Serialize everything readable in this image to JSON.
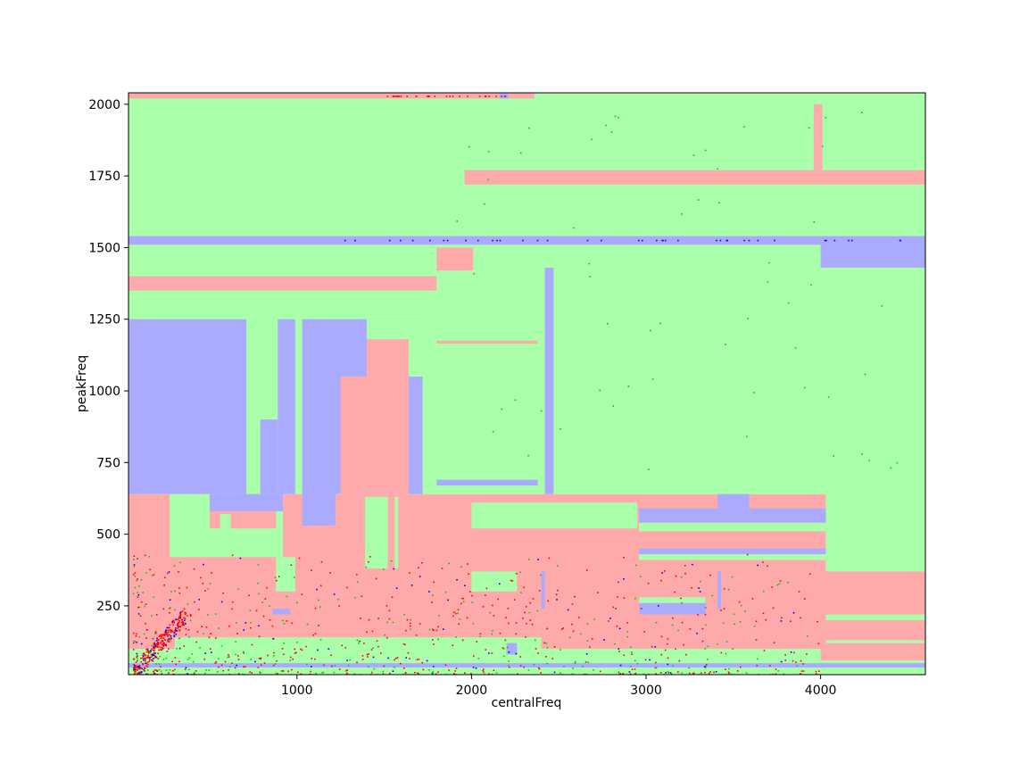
{
  "chart_data": {
    "type": "heatmap",
    "title": "",
    "xlabel": "centralFreq",
    "ylabel": "peakFreq",
    "xlim": [
      35,
      4600
    ],
    "ylim": [
      10,
      2040
    ],
    "xticks": [
      1000,
      2000,
      3000,
      4000
    ],
    "yticks": [
      250,
      500,
      750,
      1000,
      1250,
      1500,
      1750,
      2000
    ],
    "grid": false,
    "legend": "none",
    "colors": {
      "region_green": "#aaffaa",
      "region_red": "#ffaaaa",
      "region_blue": "#aaaaff",
      "point_red": "#ff0000",
      "point_green": "#00cc00",
      "point_blue": "#0000ff"
    },
    "regions": [
      {
        "class": "red",
        "x": [
          35,
          4600
        ],
        "y": [
          10,
          640
        ]
      },
      {
        "class": "green",
        "x": [
          35,
          4600
        ],
        "y": [
          640,
          2040
        ]
      },
      {
        "class": "red",
        "x": [
          35,
          2360
        ],
        "y": [
          2020,
          2040
        ]
      },
      {
        "class": "blue",
        "x": [
          2160,
          2210
        ],
        "y": [
          2020,
          2040
        ]
      },
      {
        "class": "red",
        "x": [
          3960,
          4010
        ],
        "y": [
          1770,
          2000
        ]
      },
      {
        "class": "red",
        "x": [
          1960,
          4600
        ],
        "y": [
          1720,
          1770
        ]
      },
      {
        "class": "blue",
        "x": [
          35,
          4600
        ],
        "y": [
          1510,
          1540
        ]
      },
      {
        "class": "blue",
        "x": [
          4000,
          4600
        ],
        "y": [
          1430,
          1515
        ]
      },
      {
        "class": "red",
        "x": [
          1800,
          2010
        ],
        "y": [
          1420,
          1500
        ]
      },
      {
        "class": "red",
        "x": [
          35,
          1800
        ],
        "y": [
          1350,
          1400
        ]
      },
      {
        "class": "blue",
        "x": [
          2420,
          2470
        ],
        "y": [
          640,
          1430
        ]
      },
      {
        "class": "red",
        "x": [
          1800,
          2380
        ],
        "y": [
          1165,
          1175
        ]
      },
      {
        "class": "blue",
        "x": [
          1800,
          2380
        ],
        "y": [
          670,
          690
        ]
      },
      {
        "class": "blue",
        "x": [
          35,
          710
        ],
        "y": [
          640,
          1250
        ]
      },
      {
        "class": "blue",
        "x": [
          890,
          990
        ],
        "y": [
          640,
          1250
        ]
      },
      {
        "class": "blue",
        "x": [
          790,
          890
        ],
        "y": [
          640,
          900
        ]
      },
      {
        "class": "blue",
        "x": [
          1030,
          1720
        ],
        "y": [
          640,
          1250
        ]
      },
      {
        "class": "green",
        "x": [
          1400,
          1720
        ],
        "y": [
          1050,
          1250
        ]
      },
      {
        "class": "red",
        "x": [
          1250,
          1400
        ],
        "y": [
          640,
          1050
        ]
      },
      {
        "class": "red",
        "x": [
          1400,
          1640
        ],
        "y": [
          640,
          1180
        ]
      },
      {
        "class": "green",
        "x": [
          270,
          920
        ],
        "y": [
          420,
          640
        ]
      },
      {
        "class": "blue",
        "x": [
          500,
          920
        ],
        "y": [
          580,
          640
        ]
      },
      {
        "class": "red",
        "x": [
          500,
          880
        ],
        "y": [
          520,
          580
        ]
      },
      {
        "class": "green",
        "x": [
          560,
          620
        ],
        "y": [
          510,
          570
        ]
      },
      {
        "class": "blue",
        "x": [
          1030,
          1220
        ],
        "y": [
          530,
          640
        ]
      },
      {
        "class": "green",
        "x": [
          1390,
          1520
        ],
        "y": [
          380,
          630
        ]
      },
      {
        "class": "green",
        "x": [
          1560,
          1580
        ],
        "y": [
          380,
          630
        ]
      },
      {
        "class": "green",
        "x": [
          2000,
          2950
        ],
        "y": [
          520,
          610
        ]
      },
      {
        "class": "blue",
        "x": [
          2960,
          4030
        ],
        "y": [
          540,
          590
        ]
      },
      {
        "class": "blue",
        "x": [
          3410,
          3590
        ],
        "y": [
          590,
          640
        ]
      },
      {
        "class": "green",
        "x": [
          2960,
          4030
        ],
        "y": [
          510,
          540
        ]
      },
      {
        "class": "blue",
        "x": [
          2960,
          4030
        ],
        "y": [
          430,
          450
        ]
      },
      {
        "class": "green",
        "x": [
          2960,
          4030
        ],
        "y": [
          410,
          430
        ]
      },
      {
        "class": "green",
        "x": [
          4030,
          4600
        ],
        "y": [
          370,
          640
        ]
      },
      {
        "class": "green",
        "x": [
          880,
          990
        ],
        "y": [
          300,
          420
        ]
      },
      {
        "class": "green",
        "x": [
          2000,
          2260
        ],
        "y": [
          300,
          370
        ]
      },
      {
        "class": "blue",
        "x": [
          2400,
          2420
        ],
        "y": [
          240,
          370
        ]
      },
      {
        "class": "blue",
        "x": [
          3410,
          3430
        ],
        "y": [
          240,
          370
        ]
      },
      {
        "class": "blue",
        "x": [
          2960,
          3340
        ],
        "y": [
          220,
          260
        ]
      },
      {
        "class": "green",
        "x": [
          2960,
          3340
        ],
        "y": [
          260,
          280
        ]
      },
      {
        "class": "green",
        "x": [
          4030,
          4600
        ],
        "y": [
          200,
          220
        ]
      },
      {
        "class": "green",
        "x": [
          4030,
          4600
        ],
        "y": [
          120,
          130
        ]
      },
      {
        "class": "green",
        "x": [
          35,
          4600
        ],
        "y": [
          10,
          60
        ]
      },
      {
        "class": "blue",
        "x": [
          35,
          4600
        ],
        "y": [
          35,
          50
        ]
      },
      {
        "class": "green",
        "x": [
          35,
          4000
        ],
        "y": [
          60,
          100
        ]
      },
      {
        "class": "green",
        "x": [
          300,
          2400
        ],
        "y": [
          100,
          140
        ]
      },
      {
        "class": "blue",
        "x": [
          2200,
          2260
        ],
        "y": [
          80,
          120
        ]
      },
      {
        "class": "blue",
        "x": [
          860,
          960
        ],
        "y": [
          220,
          240
        ]
      }
    ]
  }
}
